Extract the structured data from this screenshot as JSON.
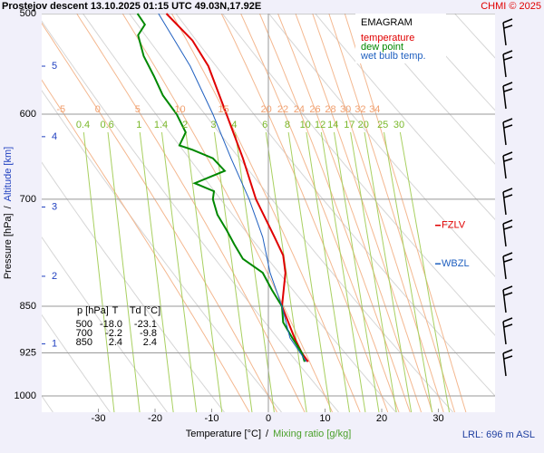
{
  "chart_data": {
    "type": "emagram",
    "title": "Prostejov   descent   13.10.2025 01:15 UTC  49.03N,17.92E",
    "credit": "CHMI © 2025",
    "legend_title": "EMAGRAM",
    "xlabel": "Temperature [°C]",
    "xlabel_separator": "/",
    "mixing_label": "Mixing ratio [g/kg]",
    "ylabel": "Pressure [hPa]",
    "ylabel_separator": "/",
    "altitude_label": "Altitude [km]",
    "footnote": "LRL: 696 m ASL",
    "xlim": [
      -40,
      40
    ],
    "xticks": [
      -30,
      -20,
      -10,
      0,
      10,
      20,
      30
    ],
    "ylim": [
      500,
      1030
    ],
    "yticks": [
      500,
      600,
      700,
      850,
      925,
      1000
    ],
    "log_y": true,
    "altitude_ticks": {
      "km": [
        5,
        4,
        3,
        2,
        1
      ],
      "pressure": [
        550,
        625,
        710,
        805,
        910
      ]
    },
    "moist_adiabats": [
      -5,
      0,
      5,
      10,
      15,
      20,
      22,
      24,
      26,
      28,
      30,
      32,
      34
    ],
    "mixing_ratios": [
      0.4,
      0.6,
      1,
      1.4,
      2,
      3,
      4,
      6,
      8,
      10,
      12,
      14,
      17,
      20,
      25,
      30
    ],
    "series": [
      {
        "name": "temperature",
        "color": "#e00000",
        "pressure": [
          940,
          925,
          900,
          850,
          800,
          775,
          750,
          700,
          650,
          600,
          550,
          525,
          500
        ],
        "temperature": [
          7.0,
          5.9,
          4.6,
          2.4,
          3.0,
          2.6,
          1.1,
          -2.2,
          -4.5,
          -7.4,
          -10.6,
          -13.4,
          -18.0
        ]
      },
      {
        "name": "dew point",
        "color": "#008800",
        "pressure": [
          940,
          925,
          900,
          875,
          850,
          825,
          800,
          780,
          760,
          740,
          720,
          700,
          690,
          680,
          665,
          650,
          640,
          635,
          620,
          600,
          580,
          560,
          540,
          520,
          510,
          500
        ],
        "temperature": [
          6.4,
          5.9,
          4.2,
          2.6,
          2.4,
          0.6,
          -1.0,
          -4.5,
          -6.0,
          -7.4,
          -9.0,
          -9.8,
          -9.6,
          -13.0,
          -7.7,
          -9.8,
          -13.4,
          -15.7,
          -14.6,
          -16.2,
          -18.6,
          -20.2,
          -22.0,
          -23.0,
          -21.8,
          -23.1
        ]
      },
      {
        "name": "wet bulb temp.",
        "color": "#2060c0",
        "pressure": [
          940,
          900,
          850,
          800,
          750,
          700,
          650,
          600,
          550,
          500
        ],
        "temperature": [
          6.7,
          3.8,
          2.4,
          0.3,
          -1.0,
          -3.4,
          -6.6,
          -9.8,
          -13.8,
          -19.4
        ]
      }
    ],
    "levels": [
      {
        "label": "FZLV",
        "pressure": 734,
        "color": "#e00000"
      },
      {
        "label": "WBZL",
        "pressure": 787,
        "color": "#2060c0"
      }
    ],
    "table": {
      "header": [
        "p [hPa]",
        "T",
        "Td [°C]"
      ],
      "rows": [
        [
          "500",
          "-18.0",
          "-23.1"
        ],
        [
          "700",
          "-2.2",
          "-9.8"
        ],
        [
          "850",
          "2.4",
          "2.4"
        ]
      ]
    }
  }
}
